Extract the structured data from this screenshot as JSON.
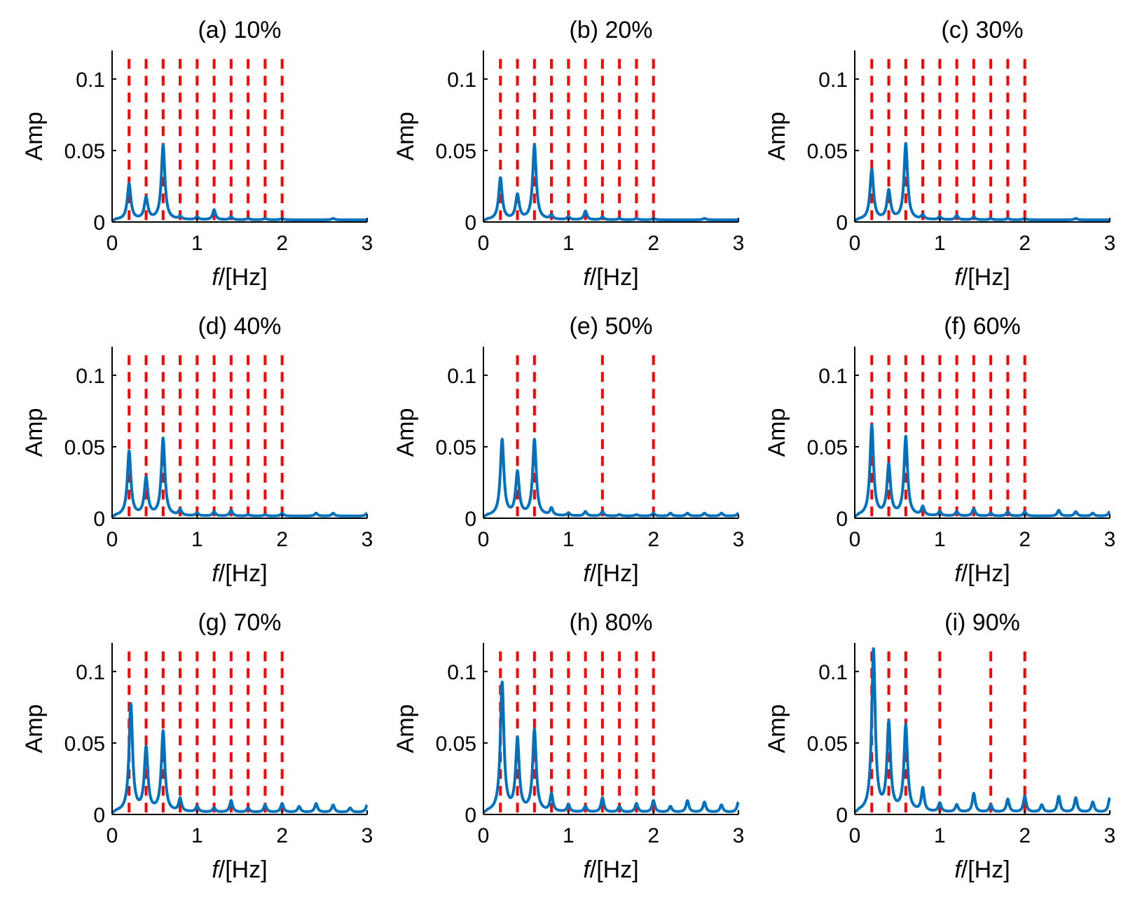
{
  "figure": {
    "layout": "3x3 grid",
    "colors": {
      "spectrum": "#0072BD",
      "marker": "#FF0000",
      "axis": "#000000"
    }
  },
  "chart_data": [
    {
      "type": "line",
      "title": "(a) 10%",
      "xlabel_italic": "f",
      "xlabel_rest": "/[Hz]",
      "ylabel": "Amp",
      "xlim": [
        0,
        3
      ],
      "ylim": [
        0,
        0.12
      ],
      "xticks": [
        0,
        1,
        2,
        3
      ],
      "yticks": [
        0,
        0.05,
        0.1
      ],
      "ytick_labels": [
        "0",
        "0.05",
        "0.1"
      ],
      "dashed_markers": [
        0.2,
        0.4,
        0.6,
        0.8,
        1.0,
        1.2,
        1.4,
        1.6,
        1.8,
        2.0
      ],
      "peaks": [
        [
          0.2,
          0.025
        ],
        [
          0.4,
          0.015
        ],
        [
          0.6,
          0.052
        ],
        [
          0.8,
          0.002
        ],
        [
          1.0,
          0.002
        ],
        [
          1.2,
          0.007
        ],
        [
          1.4,
          0.002
        ],
        [
          1.6,
          0.001
        ],
        [
          1.8,
          0.001
        ],
        [
          2.0,
          0.001
        ],
        [
          2.6,
          0.001
        ]
      ]
    },
    {
      "type": "line",
      "title": "(b) 20%",
      "xlabel_italic": "f",
      "xlabel_rest": "/[Hz]",
      "ylabel": "Amp",
      "xlim": [
        0,
        3
      ],
      "ylim": [
        0,
        0.12
      ],
      "xticks": [
        0,
        1,
        2,
        3
      ],
      "yticks": [
        0,
        0.05,
        0.1
      ],
      "ytick_labels": [
        "0",
        "0.05",
        "0.1"
      ],
      "dashed_markers": [
        0.2,
        0.4,
        0.6,
        0.8,
        1.0,
        1.2,
        1.4,
        1.6,
        1.8,
        2.0
      ],
      "peaks": [
        [
          0.2,
          0.029
        ],
        [
          0.4,
          0.017
        ],
        [
          0.6,
          0.052
        ],
        [
          0.8,
          0.003
        ],
        [
          1.0,
          0.002
        ],
        [
          1.2,
          0.006
        ],
        [
          1.4,
          0.002
        ],
        [
          1.6,
          0.001
        ],
        [
          1.8,
          0.001
        ],
        [
          2.0,
          0.001
        ],
        [
          2.6,
          0.001
        ]
      ]
    },
    {
      "type": "line",
      "title": "(c) 30%",
      "xlabel_italic": "f",
      "xlabel_rest": "/[Hz]",
      "ylabel": "Amp",
      "xlim": [
        0,
        3
      ],
      "ylim": [
        0,
        0.12
      ],
      "xticks": [
        0,
        1,
        2,
        3
      ],
      "yticks": [
        0,
        0.05,
        0.1
      ],
      "ytick_labels": [
        "0",
        "0.05",
        "0.1"
      ],
      "dashed_markers": [
        0.2,
        0.4,
        0.6,
        0.8,
        1.0,
        1.2,
        1.4,
        1.6,
        1.8,
        2.0
      ],
      "peaks": [
        [
          0.2,
          0.035
        ],
        [
          0.4,
          0.02
        ],
        [
          0.6,
          0.053
        ],
        [
          0.8,
          0.003
        ],
        [
          1.0,
          0.002
        ],
        [
          1.2,
          0.003
        ],
        [
          1.4,
          0.002
        ],
        [
          1.6,
          0.001
        ],
        [
          1.8,
          0.001
        ],
        [
          2.0,
          0.001
        ],
        [
          2.6,
          0.001
        ]
      ]
    },
    {
      "type": "line",
      "title": "(d) 40%",
      "xlabel_italic": "f",
      "xlabel_rest": "/[Hz]",
      "ylabel": "Amp",
      "xlim": [
        0,
        3
      ],
      "ylim": [
        0,
        0.12
      ],
      "xticks": [
        0,
        1,
        2,
        3
      ],
      "yticks": [
        0,
        0.05,
        0.1
      ],
      "ytick_labels": [
        "0",
        "0.05",
        "0.1"
      ],
      "dashed_markers": [
        0.2,
        0.4,
        0.6,
        0.8,
        1.0,
        1.2,
        1.4,
        1.6,
        1.8,
        2.0
      ],
      "peaks": [
        [
          0.2,
          0.045
        ],
        [
          0.4,
          0.026
        ],
        [
          0.6,
          0.054
        ],
        [
          0.8,
          0.004
        ],
        [
          1.0,
          0.002
        ],
        [
          1.2,
          0.003
        ],
        [
          1.4,
          0.004
        ],
        [
          1.6,
          0.001
        ],
        [
          1.8,
          0.001
        ],
        [
          2.0,
          0.002
        ],
        [
          2.4,
          0.002
        ],
        [
          2.6,
          0.002
        ],
        [
          3.0,
          0.002
        ]
      ]
    },
    {
      "type": "line",
      "title": "(e) 50%",
      "xlabel_italic": "f",
      "xlabel_rest": "/[Hz]",
      "ylabel": "Amp",
      "xlim": [
        0,
        3
      ],
      "ylim": [
        0,
        0.12
      ],
      "xticks": [
        0,
        1,
        2,
        3
      ],
      "yticks": [
        0,
        0.05,
        0.1
      ],
      "ytick_labels": [
        "0",
        "0.05",
        "0.1"
      ],
      "dashed_markers": [
        0.4,
        0.6,
        1.4,
        2.0
      ],
      "peaks": [
        [
          0.22,
          0.053
        ],
        [
          0.4,
          0.03
        ],
        [
          0.6,
          0.053
        ],
        [
          0.8,
          0.005
        ],
        [
          1.0,
          0.002
        ],
        [
          1.2,
          0.003
        ],
        [
          1.4,
          0.003
        ],
        [
          1.6,
          0.001
        ],
        [
          1.8,
          0.001
        ],
        [
          2.0,
          0.002
        ],
        [
          2.2,
          0.002
        ],
        [
          2.4,
          0.002
        ],
        [
          2.6,
          0.002
        ],
        [
          2.8,
          0.002
        ],
        [
          3.0,
          0.002
        ]
      ]
    },
    {
      "type": "line",
      "title": "(f) 60%",
      "xlabel_italic": "f",
      "xlabel_rest": "/[Hz]",
      "ylabel": "Amp",
      "xlim": [
        0,
        3
      ],
      "ylim": [
        0,
        0.12
      ],
      "xticks": [
        0,
        1,
        2,
        3
      ],
      "yticks": [
        0,
        0.05,
        0.1
      ],
      "ytick_labels": [
        "0",
        "0.05",
        "0.1"
      ],
      "dashed_markers": [
        0.2,
        0.4,
        0.6,
        0.8,
        1.0,
        1.2,
        1.4,
        1.6,
        1.8,
        2.0
      ],
      "peaks": [
        [
          0.2,
          0.063
        ],
        [
          0.4,
          0.035
        ],
        [
          0.6,
          0.055
        ],
        [
          0.8,
          0.006
        ],
        [
          1.0,
          0.003
        ],
        [
          1.2,
          0.003
        ],
        [
          1.4,
          0.005
        ],
        [
          1.6,
          0.002
        ],
        [
          1.8,
          0.003
        ],
        [
          2.0,
          0.003
        ],
        [
          2.4,
          0.004
        ],
        [
          2.6,
          0.003
        ],
        [
          2.8,
          0.002
        ],
        [
          3.0,
          0.003
        ]
      ]
    },
    {
      "type": "line",
      "title": "(g) 70%",
      "xlabel_italic": "f",
      "xlabel_rest": "/[Hz]",
      "ylabel": "Amp",
      "xlim": [
        0,
        3
      ],
      "ylim": [
        0,
        0.12
      ],
      "xticks": [
        0,
        1,
        2,
        3
      ],
      "yticks": [
        0,
        0.05,
        0.1
      ],
      "ytick_labels": [
        "0",
        "0.05",
        "0.1"
      ],
      "dashed_markers": [
        0.2,
        0.4,
        0.6,
        0.8,
        1.0,
        1.2,
        1.4,
        1.6,
        1.8,
        2.0
      ],
      "peaks": [
        [
          0.22,
          0.075
        ],
        [
          0.4,
          0.044
        ],
        [
          0.6,
          0.056
        ],
        [
          0.8,
          0.009
        ],
        [
          1.0,
          0.004
        ],
        [
          1.2,
          0.003
        ],
        [
          1.4,
          0.008
        ],
        [
          1.6,
          0.003
        ],
        [
          1.8,
          0.005
        ],
        [
          2.0,
          0.006
        ],
        [
          2.2,
          0.004
        ],
        [
          2.4,
          0.006
        ],
        [
          2.6,
          0.005
        ],
        [
          2.8,
          0.003
        ],
        [
          3.0,
          0.005
        ]
      ]
    },
    {
      "type": "line",
      "title": "(h) 80%",
      "xlabel_italic": "f",
      "xlabel_rest": "/[Hz]",
      "ylabel": "Amp",
      "xlim": [
        0,
        3
      ],
      "ylim": [
        0,
        0.12
      ],
      "xticks": [
        0,
        1,
        2,
        3
      ],
      "yticks": [
        0,
        0.05,
        0.1
      ],
      "ytick_labels": [
        "0",
        "0.05",
        "0.1"
      ],
      "dashed_markers": [
        0.2,
        0.4,
        0.6,
        0.8,
        1.0,
        1.2,
        1.4,
        1.6,
        1.8,
        2.0
      ],
      "peaks": [
        [
          0.22,
          0.09
        ],
        [
          0.4,
          0.05
        ],
        [
          0.6,
          0.057
        ],
        [
          0.8,
          0.012
        ],
        [
          1.0,
          0.005
        ],
        [
          1.2,
          0.004
        ],
        [
          1.4,
          0.01
        ],
        [
          1.6,
          0.004
        ],
        [
          1.8,
          0.006
        ],
        [
          2.0,
          0.008
        ],
        [
          2.2,
          0.004
        ],
        [
          2.4,
          0.008
        ],
        [
          2.6,
          0.007
        ],
        [
          2.8,
          0.005
        ],
        [
          3.0,
          0.007
        ]
      ]
    },
    {
      "type": "line",
      "title": "(i) 90%",
      "xlabel_italic": "f",
      "xlabel_rest": "/[Hz]",
      "ylabel": "Amp",
      "xlim": [
        0,
        3
      ],
      "ylim": [
        0,
        0.12
      ],
      "xticks": [
        0,
        1,
        2,
        3
      ],
      "yticks": [
        0,
        0.05,
        0.1
      ],
      "ytick_labels": [
        "0",
        "0.05",
        "0.1"
      ],
      "dashed_markers": [
        0.2,
        0.4,
        0.6,
        1.0,
        1.6,
        2.0
      ],
      "peaks": [
        [
          0.22,
          0.113
        ],
        [
          0.4,
          0.061
        ],
        [
          0.6,
          0.06
        ],
        [
          0.8,
          0.016
        ],
        [
          1.0,
          0.006
        ],
        [
          1.2,
          0.005
        ],
        [
          1.4,
          0.013
        ],
        [
          1.6,
          0.005
        ],
        [
          1.8,
          0.009
        ],
        [
          2.0,
          0.011
        ],
        [
          2.2,
          0.005
        ],
        [
          2.4,
          0.011
        ],
        [
          2.6,
          0.01
        ],
        [
          2.8,
          0.007
        ],
        [
          3.0,
          0.01
        ]
      ]
    }
  ]
}
